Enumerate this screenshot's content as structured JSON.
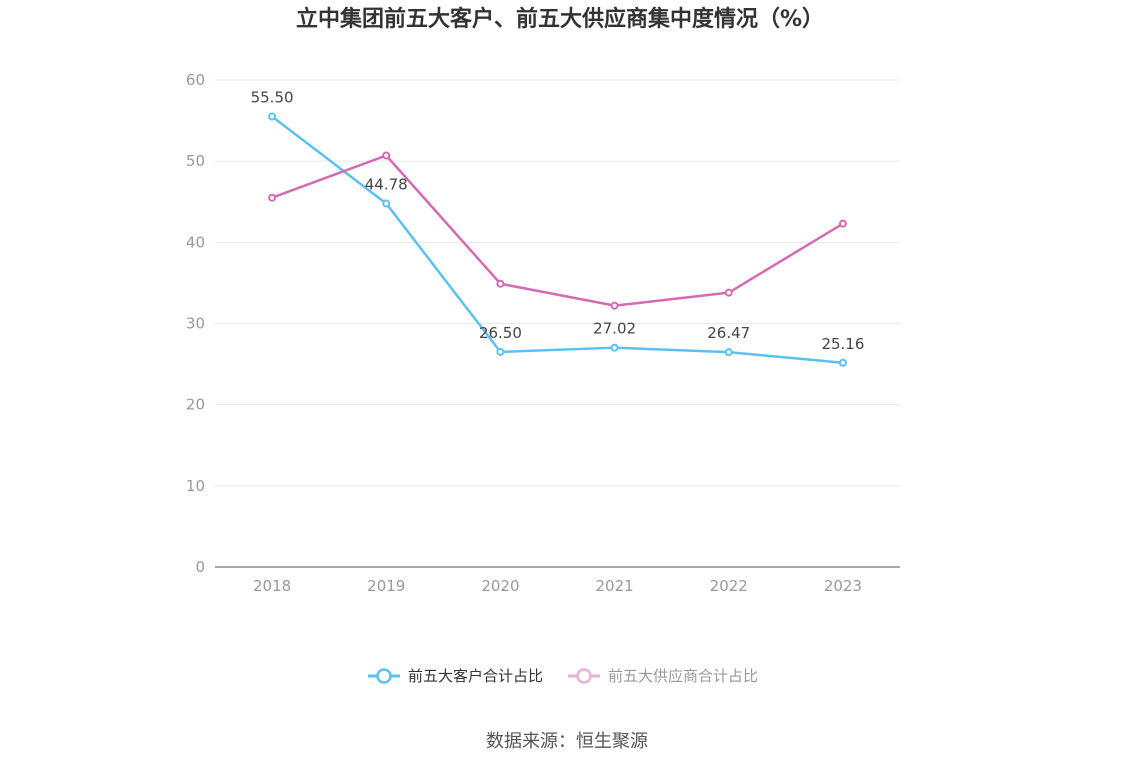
{
  "chart_data": {
    "type": "line",
    "title": "立中集团前五大客户、前五大供应商集中度情况（%）",
    "categories": [
      "2018",
      "2019",
      "2020",
      "2021",
      "2022",
      "2023"
    ],
    "ylim": [
      0,
      60
    ],
    "yticks": [
      0,
      10,
      20,
      30,
      40,
      50,
      60
    ],
    "grid": true,
    "legend_position": "bottom",
    "series": [
      {
        "name": "前五大客户合计占比",
        "color": "#5bc0f2",
        "values": [
          55.5,
          44.78,
          26.5,
          27.02,
          26.47,
          25.16
        ],
        "labels": [
          "55.50",
          "44.78",
          "26.50",
          "27.02",
          "26.47",
          "25.16"
        ]
      },
      {
        "name": "前五大供应商合计占比",
        "color": "#d46ab2",
        "legend_color": "#ebb0d8",
        "values": [
          45.5,
          50.7,
          34.9,
          32.2,
          33.8,
          42.3
        ]
      }
    ]
  },
  "source_text": "数据来源：恒生聚源"
}
